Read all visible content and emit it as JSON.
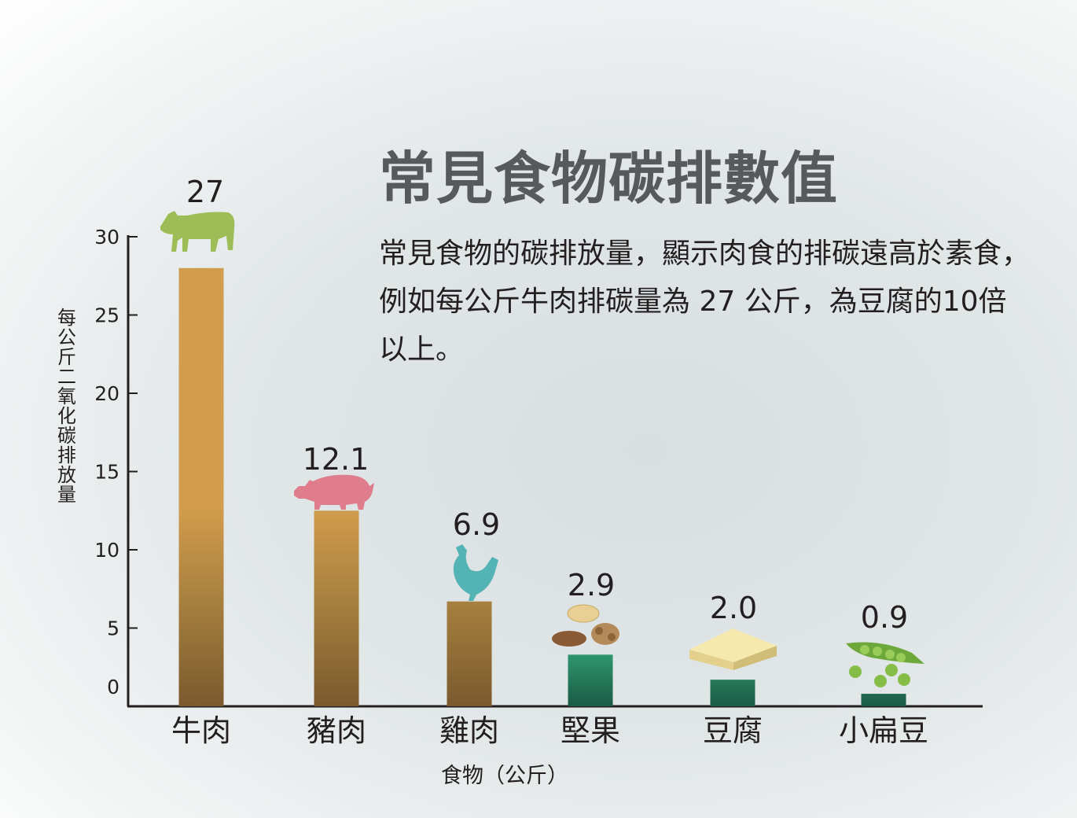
{
  "title": "常見食物碳排數值",
  "description": "常見食物的碳排放量，顯示肉食的排碳遠高於素食，例如每公斤牛肉排碳量為 27 公斤，為豆腐的10倍以上。",
  "colors": {
    "meat_bar": "#d19c4c",
    "meat_bar_dark": "#7a5a2e",
    "plant_bar": "#2e9a72",
    "plant_bar_dark": "#1c5a44",
    "cow": "#9dbe56",
    "pig": "#e07d8c",
    "chicken": "#54b3b4",
    "axis": "#231f20"
  },
  "chart_data": {
    "type": "bar",
    "title": "常見食物碳排數值",
    "xlabel": "食物（公斤）",
    "ylabel": "每公斤二氧化碳排放量",
    "ylim": [
      0,
      30
    ],
    "yticks": [
      0,
      5,
      10,
      15,
      20,
      25,
      30
    ],
    "categories": [
      "牛肉",
      "豬肉",
      "雞肉",
      "堅果",
      "豆腐",
      "小扁豆"
    ],
    "values": [
      27,
      12.1,
      6.9,
      2.9,
      2.0,
      0.9
    ],
    "value_labels": [
      "27",
      "12.1",
      "6.9",
      "2.9",
      "2.0",
      "0.9"
    ],
    "bar_heights": [
      28,
      12.5,
      6.7,
      3.3,
      1.7,
      0.8
    ],
    "groups": [
      "meat",
      "meat",
      "meat",
      "plant",
      "plant",
      "plant"
    ],
    "icons": [
      "cow-icon",
      "pig-icon",
      "chicken-icon",
      "nuts-icon",
      "tofu-icon",
      "peas-icon"
    ],
    "grid": false,
    "legend": "none"
  }
}
